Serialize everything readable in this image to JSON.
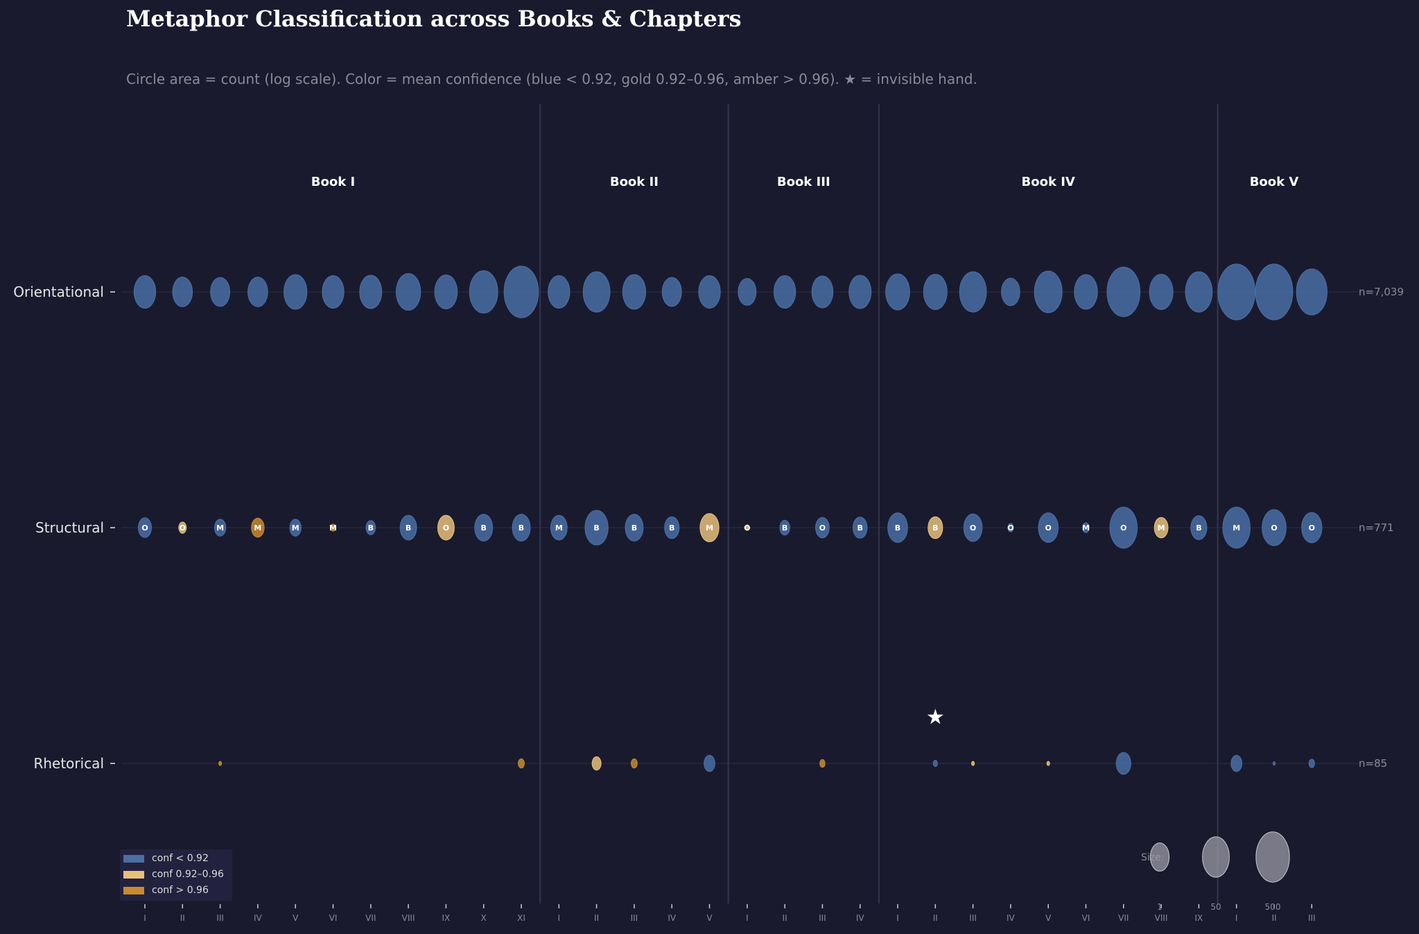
{
  "chart_data": {
    "type": "bubble-grid",
    "title": "Metaphor Classification across Books & Chapters",
    "subtitle": "Circle area = count (log scale). Color = mean confidence (blue < 0.92, gold 0.92–0.96, amber > 0.96). ★ = invisible hand.",
    "books": [
      {
        "name": "Book I",
        "chapters": [
          "I",
          "II",
          "III",
          "IV",
          "V",
          "VI",
          "VII",
          "VIII",
          "IX",
          "X",
          "XI"
        ]
      },
      {
        "name": "Book II",
        "chapters": [
          "I",
          "II",
          "III",
          "IV",
          "V"
        ]
      },
      {
        "name": "Book III",
        "chapters": [
          "I",
          "II",
          "III",
          "IV"
        ]
      },
      {
        "name": "Book IV",
        "chapters": [
          "I",
          "II",
          "III",
          "IV",
          "V",
          "VI",
          "VII",
          "VIII",
          "IX"
        ]
      },
      {
        "name": "Book V",
        "chapters": [
          "I",
          "II",
          "III"
        ]
      }
    ],
    "categories": [
      {
        "name": "Orientational",
        "total_label": "n=7,039",
        "sizes": [
          46,
          42,
          41,
          42,
          49,
          46,
          47,
          52,
          48,
          60,
          73,
          46,
          57,
          49,
          41,
          46,
          38,
          46,
          45,
          47,
          51,
          50,
          57,
          39,
          59,
          49,
          70,
          50,
          57,
          79,
          79,
          65
        ],
        "conf": [
          "blue",
          "blue",
          "blue",
          "blue",
          "blue",
          "blue",
          "blue",
          "blue",
          "blue",
          "blue",
          "blue",
          "blue",
          "blue",
          "blue",
          "blue",
          "blue",
          "blue",
          "blue",
          "blue",
          "blue",
          "blue",
          "blue",
          "blue",
          "blue",
          "blue",
          "blue",
          "blue",
          "blue",
          "blue",
          "blue",
          "blue",
          "blue"
        ],
        "letters": [
          "",
          "",
          "",
          "",
          "",
          "",
          "",
          "",
          "",
          "",
          "",
          "",
          "",
          "",
          "",
          "",
          "",
          "",
          "",
          "",
          "",
          "",
          "",
          "",
          "",
          "",
          "",
          "",
          "",
          "",
          "",
          ""
        ]
      },
      {
        "name": "Structural",
        "total_label": "n=771",
        "sizes": [
          28,
          16,
          24,
          27,
          24,
          10,
          20,
          35,
          35,
          38,
          38,
          35,
          49,
          38,
          31,
          40,
          8,
          21,
          29,
          30,
          42,
          31,
          39,
          12,
          42,
          14,
          58,
          29,
          34,
          58,
          51,
          43
        ],
        "conf": [
          "blue",
          "gold",
          "blue",
          "amber",
          "blue",
          "amber",
          "blue",
          "blue",
          "gold",
          "blue",
          "blue",
          "blue",
          "blue",
          "blue",
          "blue",
          "gold",
          "gold",
          "blue",
          "blue",
          "blue",
          "blue",
          "gold",
          "blue",
          "blue",
          "blue",
          "blue",
          "blue",
          "gold",
          "blue",
          "blue",
          "blue",
          "blue"
        ],
        "letters": [
          "O",
          "O",
          "M",
          "M",
          "M",
          "M",
          "B",
          "B",
          "O",
          "B",
          "B",
          "M",
          "B",
          "B",
          "B",
          "M",
          "O",
          "B",
          "O",
          "B",
          "B",
          "B",
          "O",
          "O",
          "O",
          "M",
          "O",
          "M",
          "B",
          "M",
          "O",
          "O"
        ]
      },
      {
        "name": "Rhetorical",
        "total_label": "n=85",
        "sizes": [
          0,
          0,
          6,
          0,
          0,
          0,
          0,
          0,
          0,
          0,
          13,
          0,
          19,
          13,
          0,
          23,
          0,
          0,
          11,
          0,
          0,
          9,
          6,
          0,
          6,
          0,
          31,
          0,
          0,
          23,
          5,
          12
        ],
        "conf": [
          "",
          "",
          "amber",
          "",
          "",
          "",
          "",
          "",
          "",
          "",
          "amber",
          "",
          "gold",
          "amber",
          "",
          "blue",
          "",
          "",
          "amber",
          "",
          "",
          "blue",
          "gold",
          "",
          "gold",
          "",
          "blue",
          "",
          "",
          "blue",
          "blue",
          "blue"
        ],
        "letters": [
          "",
          "",
          "",
          "",
          "",
          "",
          "",
          "",
          "",
          "",
          "",
          "",
          "",
          "",
          "",
          "",
          "",
          "",
          "",
          "",
          "",
          "",
          "",
          "",
          "",
          "",
          "",
          "",
          "",
          "",
          "",
          ""
        ]
      }
    ],
    "star_note": {
      "symbol": "★",
      "meaning": "invisible hand",
      "category": "Rhetorical",
      "book": "Book IV",
      "chapter": "II"
    },
    "colors": {
      "blue": "#4a6fa5",
      "gold": "#e8c07a",
      "amber": "#c98a2e",
      "background": "#1a1a2e"
    },
    "legend": [
      {
        "label": "conf < 0.92",
        "color": "#4a6fa5"
      },
      {
        "label": "conf 0.92–0.96",
        "color": "#e8c07a"
      },
      {
        "label": "conf > 0.96",
        "color": "#c98a2e"
      }
    ],
    "size_legend": {
      "label": "Size:",
      "values": [
        "1",
        "50",
        "500"
      ]
    }
  }
}
